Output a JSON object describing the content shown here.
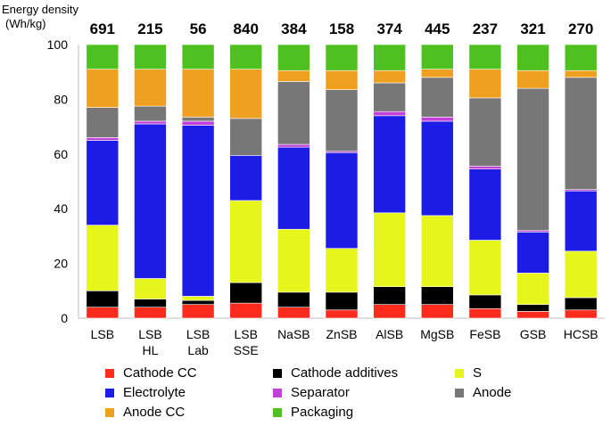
{
  "header": {
    "line1": "Energy density",
    "line2": "(Wh/kg)"
  },
  "chart_data": {
    "type": "bar",
    "stacked": true,
    "ylim": [
      0,
      100
    ],
    "yticks": [
      0,
      20,
      40,
      60,
      80,
      100
    ],
    "categories": [
      [
        "LSB"
      ],
      [
        "LSB",
        "HL"
      ],
      [
        "LSB",
        "Lab"
      ],
      [
        "LSB",
        "SSE"
      ],
      [
        "NaSB"
      ],
      [
        "ZnSB"
      ],
      [
        "AlSB"
      ],
      [
        "MgSB"
      ],
      [
        "FeSB"
      ],
      [
        "GSB"
      ],
      [
        "HCSB"
      ]
    ],
    "energy_density": [
      "691",
      "215",
      "56",
      "840",
      "384",
      "158",
      "374",
      "445",
      "237",
      "321",
      "270"
    ],
    "series": [
      {
        "name": "Cathode CC",
        "color": "#ff2b1c",
        "values": [
          4,
          4,
          5,
          5.5,
          4,
          3,
          5,
          5,
          3.5,
          2.5,
          3
        ]
      },
      {
        "name": "Cathode additives",
        "color": "#000000",
        "values": [
          6,
          3,
          1.5,
          7.5,
          5.5,
          6.5,
          6.5,
          6.5,
          5,
          2.5,
          4.5
        ]
      },
      {
        "name": "S",
        "color": "#e6f51c",
        "values": [
          24,
          7.5,
          1.5,
          30,
          23,
          16,
          27,
          26,
          20,
          11.5,
          17
        ]
      },
      {
        "name": "Electrolyte",
        "color": "#1c1ce6",
        "values": [
          31,
          56.5,
          62.5,
          16.5,
          30,
          35,
          35.5,
          34.5,
          26,
          15,
          22
        ]
      },
      {
        "name": "Separator",
        "color": "#c33fd9",
        "values": [
          1,
          1,
          1.5,
          0,
          1,
          0.5,
          1.5,
          1.5,
          1,
          0.5,
          0.5
        ]
      },
      {
        "name": "Anode",
        "color": "#777777",
        "values": [
          11,
          5.5,
          1.5,
          13.5,
          23,
          22.5,
          10.5,
          14.5,
          25,
          52,
          41
        ]
      },
      {
        "name": "Anode CC",
        "color": "#f0a020",
        "values": [
          14,
          13.5,
          17.5,
          18,
          4,
          7,
          4.5,
          3,
          10.5,
          6.5,
          2.5
        ]
      },
      {
        "name": "Packaging",
        "color": "#4ec020",
        "values": [
          9,
          9,
          9,
          9,
          9.5,
          9.5,
          9.5,
          9,
          9,
          9.5,
          9.5
        ]
      }
    ]
  }
}
